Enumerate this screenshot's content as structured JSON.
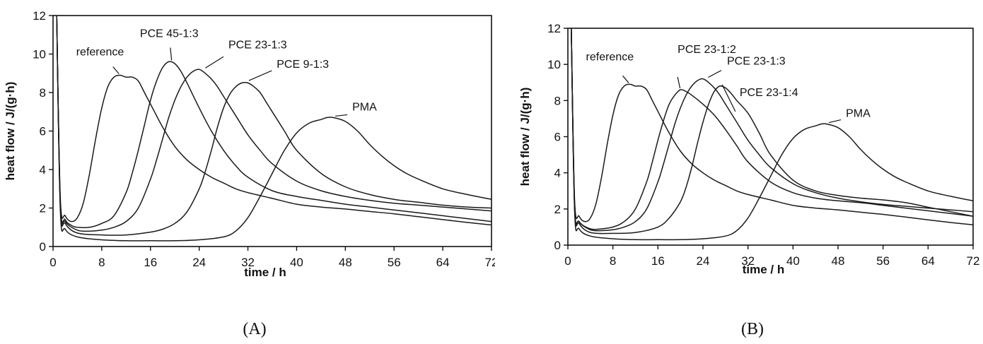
{
  "chart_data": [
    {
      "type": "line",
      "panel_label": "(A)",
      "xlabel": "time / h",
      "ylabel": "heat flow / J/(g·h)",
      "xlim": [
        0,
        72
      ],
      "ylim": [
        0,
        12
      ],
      "xticks": [
        0,
        8,
        16,
        24,
        32,
        40,
        48,
        56,
        64,
        72
      ],
      "yticks": [
        0,
        2,
        4,
        6,
        8,
        10,
        12
      ],
      "grid": false,
      "series": [
        {
          "name": "reference",
          "x": [
            0.6,
            1.2,
            2,
            3,
            4,
            5,
            6,
            7,
            8,
            9,
            10,
            11,
            12,
            13,
            14,
            15,
            16,
            18,
            20,
            22,
            24,
            26,
            28,
            30,
            32,
            36,
            40,
            44,
            48,
            52,
            56,
            60,
            64,
            68,
            72
          ],
          "y": [
            12,
            2.5,
            1.6,
            1.3,
            1.5,
            2.3,
            3.8,
            5.6,
            7.2,
            8.3,
            8.8,
            8.9,
            8.8,
            8.8,
            8.6,
            8.0,
            7.4,
            6.2,
            5.2,
            4.5,
            4.0,
            3.6,
            3.3,
            3.0,
            2.8,
            2.5,
            2.2,
            2.05,
            1.95,
            1.82,
            1.7,
            1.55,
            1.4,
            1.25,
            1.12
          ],
          "label_at": [
            11,
            8.9
          ]
        },
        {
          "name": "PCE 45-1:3",
          "x": [
            0.6,
            1.2,
            2,
            3,
            4,
            6,
            8,
            10,
            12,
            13,
            14,
            15,
            16,
            17,
            18,
            19,
            20,
            21,
            22,
            24,
            26,
            28,
            30,
            32,
            36,
            40,
            44,
            48,
            52,
            56,
            60,
            64,
            68,
            72
          ],
          "y": [
            12,
            2.3,
            1.4,
            1.1,
            1.0,
            1.0,
            1.2,
            1.6,
            2.8,
            3.8,
            5.0,
            6.3,
            7.6,
            8.6,
            9.3,
            9.6,
            9.5,
            9.1,
            8.5,
            7.2,
            6.0,
            5.0,
            4.2,
            3.6,
            2.9,
            2.6,
            2.4,
            2.2,
            2.05,
            1.9,
            1.75,
            1.6,
            1.45,
            1.3
          ],
          "label_at": [
            19.5,
            9.6
          ]
        },
        {
          "name": "PCE 23-1:3",
          "x": [
            0.6,
            1.2,
            2,
            4,
            6,
            8,
            10,
            12,
            14,
            16,
            17,
            18,
            19,
            20,
            21,
            22,
            23,
            24,
            25,
            26,
            27,
            28,
            30,
            32,
            34,
            36,
            40,
            44,
            48,
            52,
            56,
            60,
            64,
            68,
            72
          ],
          "y": [
            12,
            2.2,
            1.3,
            0.85,
            0.8,
            0.85,
            1.0,
            1.3,
            2.0,
            3.5,
            4.5,
            5.6,
            6.7,
            7.6,
            8.3,
            8.8,
            9.1,
            9.2,
            9.0,
            8.7,
            8.3,
            7.8,
            6.8,
            5.8,
            5.0,
            4.3,
            3.4,
            2.9,
            2.6,
            2.4,
            2.25,
            2.15,
            2.05,
            1.95,
            1.85
          ],
          "label_at": [
            24.5,
            9.2
          ]
        },
        {
          "name": "PCE 9-1:3",
          "x": [
            0.6,
            1.2,
            2,
            4,
            8,
            12,
            16,
            18,
            20,
            22,
            24,
            25,
            26,
            27,
            28,
            29,
            30,
            31,
            32,
            33,
            34,
            35,
            36,
            38,
            40,
            44,
            48,
            52,
            56,
            60,
            64,
            68,
            72
          ],
          "y": [
            12,
            2.1,
            1.2,
            0.7,
            0.6,
            0.6,
            0.75,
            0.9,
            1.2,
            1.8,
            3.0,
            3.9,
            5.0,
            6.2,
            7.2,
            7.9,
            8.3,
            8.5,
            8.5,
            8.3,
            8.0,
            7.5,
            7.0,
            6.0,
            5.0,
            3.8,
            3.1,
            2.7,
            2.45,
            2.3,
            2.15,
            2.05,
            2.0
          ],
          "label_at": [
            31.5,
            8.55
          ]
        },
        {
          "name": "PMA",
          "x": [
            0.6,
            1.2,
            2,
            4,
            8,
            12,
            16,
            20,
            24,
            28,
            30,
            32,
            34,
            36,
            38,
            40,
            42,
            44,
            45,
            46,
            48,
            50,
            52,
            54,
            56,
            58,
            60,
            64,
            68,
            72
          ],
          "y": [
            12,
            1.9,
            0.9,
            0.5,
            0.35,
            0.3,
            0.3,
            0.3,
            0.35,
            0.5,
            0.8,
            1.5,
            2.6,
            3.8,
            5.0,
            5.9,
            6.4,
            6.6,
            6.7,
            6.7,
            6.5,
            6.0,
            5.3,
            4.7,
            4.2,
            3.8,
            3.5,
            3.0,
            2.7,
            2.45
          ],
          "label_at": [
            46,
            6.7
          ]
        }
      ]
    },
    {
      "type": "line",
      "panel_label": "(B)",
      "xlabel": "time / h",
      "ylabel": "heat flow / J/(g·h)",
      "xlim": [
        0,
        72
      ],
      "ylim": [
        0,
        12
      ],
      "xticks": [
        0,
        8,
        16,
        24,
        32,
        40,
        48,
        56,
        64,
        72
      ],
      "yticks": [
        0,
        2,
        4,
        6,
        8,
        10,
        12
      ],
      "grid": false,
      "series": [
        {
          "name": "reference",
          "x": [
            0.6,
            1.2,
            2,
            3,
            4,
            5,
            6,
            7,
            8,
            9,
            10,
            11,
            12,
            13,
            14,
            15,
            16,
            18,
            20,
            22,
            24,
            26,
            28,
            30,
            32,
            36,
            40,
            44,
            48,
            52,
            56,
            60,
            64,
            68,
            72
          ],
          "y": [
            12,
            2.5,
            1.6,
            1.3,
            1.5,
            2.3,
            3.8,
            5.6,
            7.2,
            8.3,
            8.8,
            8.9,
            8.8,
            8.8,
            8.6,
            8.0,
            7.4,
            6.2,
            5.2,
            4.5,
            4.0,
            3.6,
            3.3,
            3.0,
            2.8,
            2.5,
            2.2,
            2.05,
            1.95,
            1.82,
            1.7,
            1.55,
            1.4,
            1.25,
            1.12
          ],
          "label_at": [
            11,
            8.9
          ]
        },
        {
          "name": "PCE 23-1:2",
          "x": [
            0.6,
            1.2,
            2,
            4,
            6,
            8,
            10,
            12,
            14,
            15,
            16,
            17,
            18,
            19,
            20,
            21,
            22,
            24,
            26,
            28,
            30,
            32,
            36,
            40,
            44,
            48,
            52,
            56,
            60,
            64,
            68,
            72
          ],
          "y": [
            12,
            2.2,
            1.3,
            0.9,
            0.9,
            1.0,
            1.3,
            2.0,
            3.5,
            4.6,
            5.8,
            6.9,
            7.8,
            8.3,
            8.6,
            8.5,
            8.3,
            7.8,
            7.2,
            6.4,
            5.5,
            4.6,
            3.5,
            2.9,
            2.6,
            2.45,
            2.35,
            2.2,
            2.05,
            1.9,
            1.75,
            1.6
          ],
          "label_at": [
            20,
            8.6
          ]
        },
        {
          "name": "PCE 23-1:3",
          "x": [
            0.6,
            1.2,
            2,
            4,
            6,
            8,
            10,
            12,
            14,
            16,
            17,
            18,
            19,
            20,
            21,
            22,
            23,
            24,
            25,
            26,
            27,
            28,
            30,
            32,
            34,
            36,
            40,
            44,
            48,
            52,
            56,
            60,
            64,
            68,
            72
          ],
          "y": [
            12,
            2.2,
            1.3,
            0.85,
            0.8,
            0.85,
            1.0,
            1.3,
            2.0,
            3.5,
            4.5,
            5.6,
            6.7,
            7.6,
            8.3,
            8.8,
            9.1,
            9.2,
            9.0,
            8.7,
            8.3,
            7.8,
            6.8,
            5.8,
            5.0,
            4.3,
            3.4,
            2.9,
            2.6,
            2.4,
            2.25,
            2.15,
            2.05,
            1.95,
            1.85
          ],
          "label_at": [
            24.5,
            9.2
          ]
        },
        {
          "name": "PCE 23-1:4",
          "x": [
            0.6,
            1.2,
            2,
            4,
            8,
            12,
            16,
            18,
            20,
            21,
            22,
            23,
            24,
            25,
            26,
            27,
            28,
            29,
            30,
            32,
            34,
            36,
            40,
            44,
            48,
            52,
            56,
            60,
            64,
            68,
            72
          ],
          "y": [
            12,
            2.1,
            1.2,
            0.7,
            0.65,
            0.7,
            1.0,
            1.5,
            2.4,
            3.2,
            4.3,
            5.6,
            6.8,
            7.8,
            8.5,
            8.8,
            8.7,
            8.4,
            8.0,
            7.3,
            6.2,
            5.0,
            3.6,
            3.0,
            2.75,
            2.6,
            2.5,
            2.35,
            2.1,
            1.85,
            1.6
          ],
          "label_at": [
            27,
            8.8
          ]
        },
        {
          "name": "PMA",
          "x": [
            0.6,
            1.2,
            2,
            4,
            8,
            12,
            16,
            20,
            24,
            28,
            30,
            32,
            34,
            36,
            38,
            40,
            42,
            44,
            45,
            46,
            48,
            50,
            52,
            54,
            56,
            58,
            60,
            64,
            68,
            72
          ],
          "y": [
            12,
            1.9,
            0.9,
            0.5,
            0.35,
            0.3,
            0.3,
            0.3,
            0.35,
            0.5,
            0.8,
            1.5,
            2.6,
            3.8,
            5.0,
            5.9,
            6.4,
            6.6,
            6.7,
            6.7,
            6.5,
            6.0,
            5.3,
            4.7,
            4.2,
            3.8,
            3.5,
            3.0,
            2.7,
            2.45
          ],
          "label_at": [
            46,
            6.7
          ]
        }
      ]
    }
  ]
}
